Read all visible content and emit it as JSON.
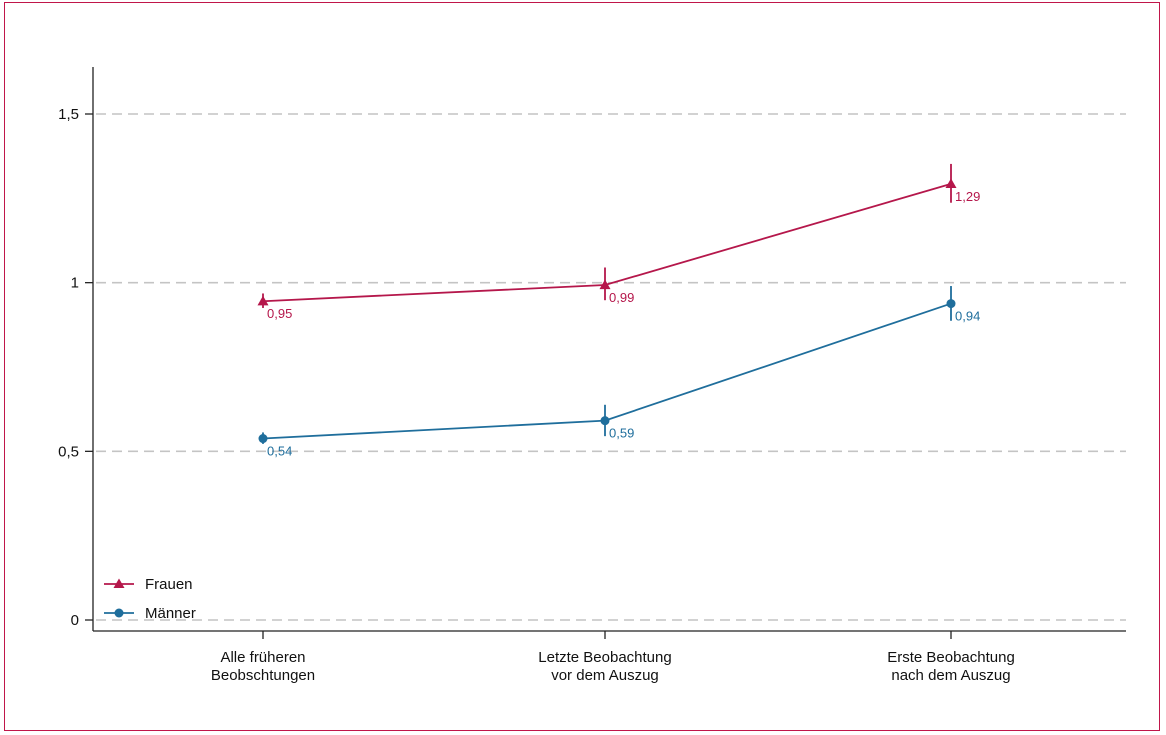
{
  "chart_data": {
    "type": "line",
    "categories": [
      [
        "Alle früheren",
        "Beobschtungen"
      ],
      [
        "Letzte Beobachtung",
        "vor dem Auszug"
      ],
      [
        "Erste Beobachtung",
        "nach dem Auszug"
      ]
    ],
    "ylim": [
      0,
      1.65
    ],
    "yticks": [
      0,
      0.5,
      1,
      1.5
    ],
    "ytick_labels": [
      "0",
      "0,5",
      "1",
      "1,5"
    ],
    "grid": true,
    "legend_position": "bottom-left",
    "series": [
      {
        "name": "Frauen",
        "marker": "triangle",
        "color": "#b5174b",
        "values": [
          0.945,
          0.993,
          1.293
        ],
        "labels": [
          "0,95",
          "0,99",
          "1,29"
        ],
        "ci": [
          [
            0.925,
            0.968
          ],
          [
            0.948,
            1.045
          ],
          [
            1.237,
            1.352
          ]
        ]
      },
      {
        "name": "Männer",
        "marker": "circle",
        "color": "#1f6e9c",
        "values": [
          0.538,
          0.591,
          0.938
        ],
        "labels": [
          "0,54",
          "0,59",
          "0,94"
        ],
        "ci": [
          [
            0.522,
            0.556
          ],
          [
            0.545,
            0.638
          ],
          [
            0.887,
            0.99
          ]
        ]
      }
    ]
  }
}
